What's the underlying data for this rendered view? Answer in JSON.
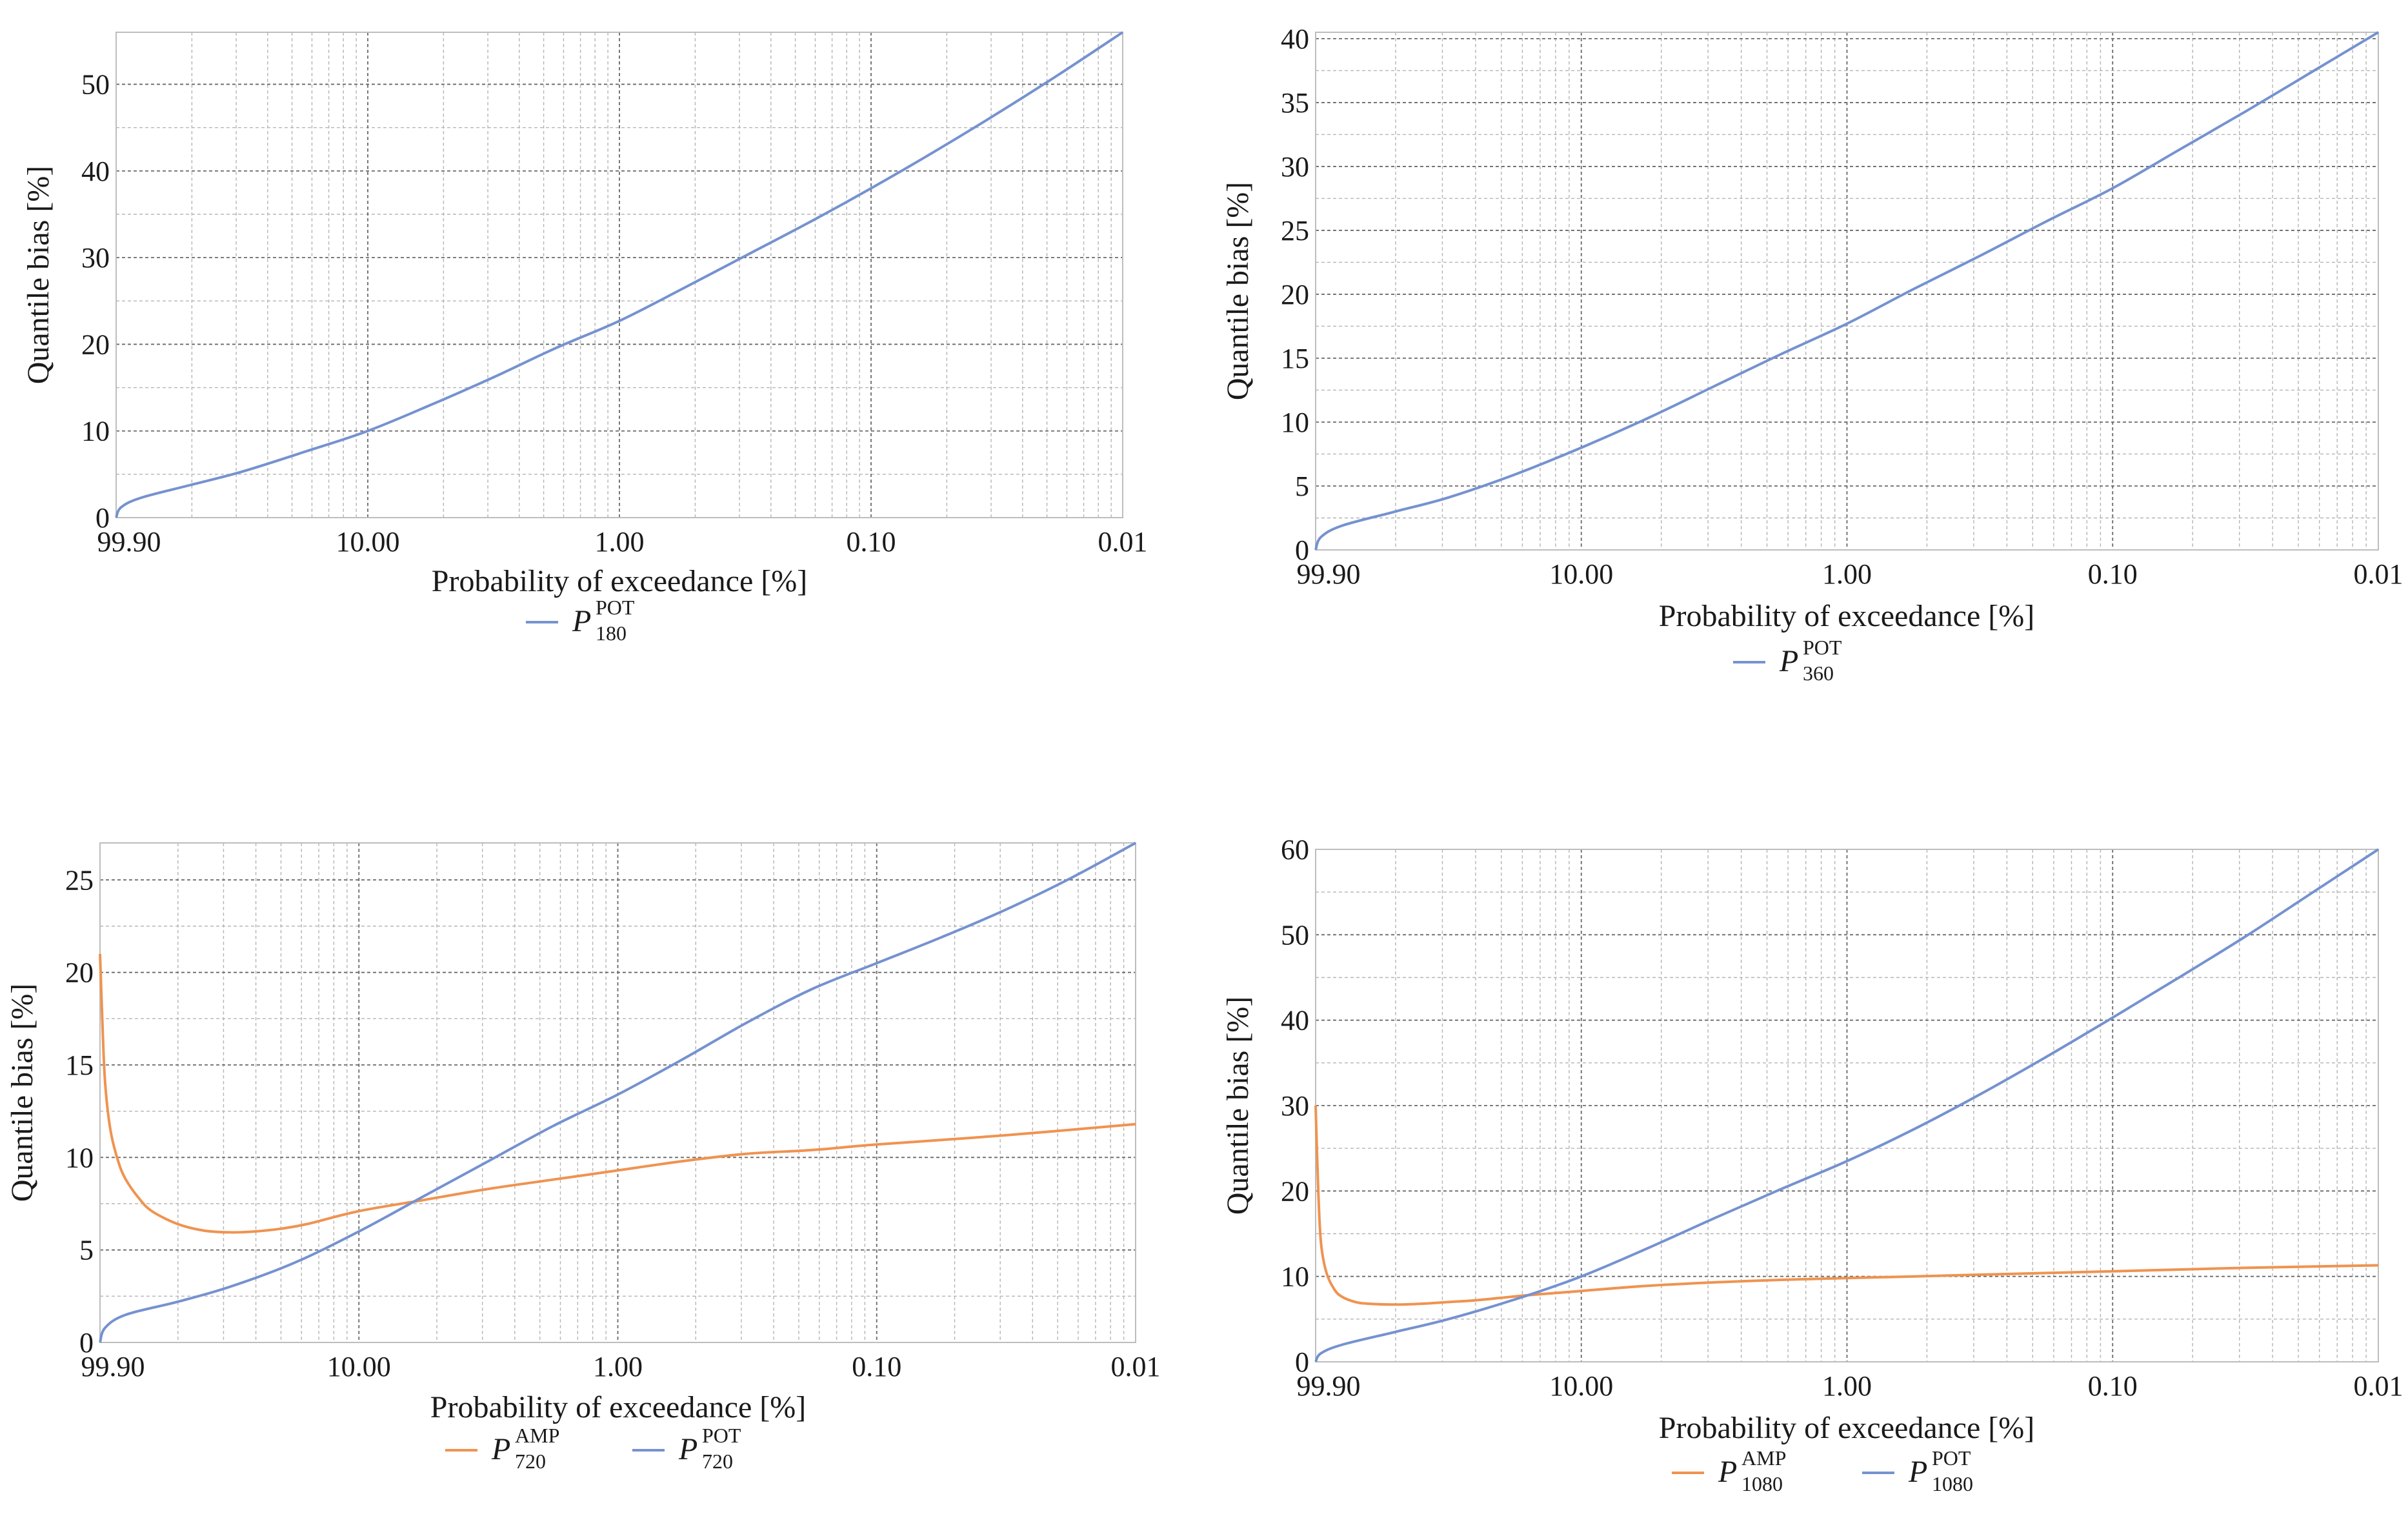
{
  "colors": {
    "pot": "#7592d0",
    "amp": "#ef9350"
  },
  "chart_data": [
    {
      "type": "line",
      "xlabel": "Probability of exceedance [%]",
      "ylabel": "Quantile bias [%]",
      "xticks": [
        "99.90",
        "10.00",
        "1.00",
        "0.10",
        "0.01"
      ],
      "yticks": [
        "0",
        "10",
        "20",
        "30",
        "40",
        "50"
      ],
      "ylim": [
        0,
        56
      ],
      "series": [
        {
          "name": "P_180^POT",
          "legend_base": "P",
          "legend_sup": "POT",
          "legend_sub": "180",
          "color": "#7592d0",
          "x_label_positions": [
            0,
            1,
            2,
            3,
            4
          ],
          "x": [
            0,
            0.02,
            0.1,
            0.3,
            0.5,
            0.75,
            1,
            1.25,
            1.5,
            1.75,
            2,
            2.25,
            2.5,
            2.75,
            3,
            3.25,
            3.5,
            3.75,
            4
          ],
          "y": [
            0,
            1.2,
            2.3,
            3.8,
            5.3,
            7.6,
            10,
            13,
            16.2,
            19.6,
            22.7,
            26.4,
            30.2,
            34,
            38,
            42.2,
            46.6,
            51.2,
            56
          ]
        }
      ]
    },
    {
      "type": "line",
      "xlabel": "Probability of exceedance [%]",
      "ylabel": "Quantile bias [%]",
      "xticks": [
        "99.90",
        "10.00",
        "1.00",
        "0.10",
        "0.01"
      ],
      "yticks": [
        "0",
        "5",
        "10",
        "15",
        "20",
        "25",
        "30",
        "35",
        "40"
      ],
      "ylim": [
        0,
        40.5
      ],
      "series": [
        {
          "name": "P_360^POT",
          "legend_base": "P",
          "legend_sup": "POT",
          "legend_sub": "360",
          "color": "#7592d0",
          "x": [
            0,
            0.02,
            0.1,
            0.3,
            0.5,
            0.75,
            1,
            1.25,
            1.5,
            1.75,
            2,
            2.25,
            2.5,
            2.75,
            3,
            3.25,
            3.5,
            3.75,
            4
          ],
          "y": [
            0,
            1,
            1.9,
            3,
            4.1,
            5.9,
            8,
            10.3,
            12.8,
            15.3,
            17.7,
            20.4,
            23,
            25.7,
            28.3,
            31.3,
            34.3,
            37.4,
            40.5
          ]
        }
      ]
    },
    {
      "type": "line",
      "xlabel": "Probability of exceedance [%]",
      "ylabel": "Quantile bias [%]",
      "xticks": [
        "99.90",
        "10.00",
        "1.00",
        "0.10",
        "0.01"
      ],
      "yticks": [
        "0",
        "5",
        "10",
        "15",
        "20",
        "25"
      ],
      "ylim": [
        0,
        27
      ],
      "series": [
        {
          "name": "P_720^AMP",
          "legend_base": "P",
          "legend_sup": "AMP",
          "legend_sub": "720",
          "color": "#ef9350",
          "x": [
            0,
            0.01,
            0.02,
            0.04,
            0.07,
            0.1,
            0.15,
            0.2,
            0.3,
            0.4,
            0.5,
            0.6,
            0.7,
            0.8,
            1,
            1.25,
            1.5,
            1.75,
            2,
            2.25,
            2.5,
            2.75,
            3,
            3.5,
            4
          ],
          "y": [
            21,
            17,
            14,
            11.5,
            9.8,
            8.8,
            7.8,
            7.1,
            6.4,
            6.05,
            5.95,
            6,
            6.15,
            6.4,
            7.1,
            7.7,
            8.3,
            8.8,
            9.3,
            9.8,
            10.2,
            10.4,
            10.7,
            11.2,
            11.8
          ]
        },
        {
          "name": "P_720^POT",
          "legend_base": "P",
          "legend_sup": "POT",
          "legend_sub": "720",
          "color": "#7592d0",
          "x": [
            0,
            0.02,
            0.1,
            0.3,
            0.5,
            0.75,
            1,
            1.25,
            1.5,
            1.75,
            2,
            2.25,
            2.5,
            2.75,
            3,
            3.25,
            3.5,
            3.75,
            4
          ],
          "y": [
            0,
            0.8,
            1.5,
            2.2,
            3,
            4.3,
            6,
            7.9,
            9.8,
            11.7,
            13.4,
            15.3,
            17.3,
            19.1,
            20.5,
            21.9,
            23.4,
            25.1,
            27
          ]
        }
      ]
    },
    {
      "type": "line",
      "xlabel": "Probability of exceedance [%]",
      "ylabel": "Quantile bias [%]",
      "xticks": [
        "99.90",
        "10.00",
        "1.00",
        "0.10",
        "0.01"
      ],
      "yticks": [
        "0",
        "10",
        "20",
        "30",
        "40",
        "50",
        "60"
      ],
      "ylim": [
        0,
        60
      ],
      "series": [
        {
          "name": "P_1080^AMP",
          "legend_base": "P",
          "legend_sup": "AMP",
          "legend_sub": "1080",
          "color": "#ef9350",
          "x": [
            0,
            0.01,
            0.02,
            0.04,
            0.07,
            0.1,
            0.15,
            0.2,
            0.3,
            0.4,
            0.5,
            0.6,
            0.7,
            0.8,
            1,
            1.25,
            1.5,
            1.75,
            2,
            2.25,
            2.5,
            2.75,
            3,
            3.5,
            4
          ],
          "y": [
            30,
            20,
            14,
            10.5,
            8.5,
            7.6,
            7,
            6.8,
            6.7,
            6.8,
            7,
            7.2,
            7.5,
            7.8,
            8.3,
            8.9,
            9.3,
            9.6,
            9.8,
            10,
            10.2,
            10.4,
            10.6,
            11,
            11.3
          ]
        },
        {
          "name": "P_1080^POT",
          "legend_base": "P",
          "legend_sup": "POT",
          "legend_sub": "1080",
          "color": "#7592d0",
          "x": [
            0,
            0.02,
            0.1,
            0.3,
            0.5,
            0.75,
            1,
            1.25,
            1.5,
            1.75,
            2,
            2.25,
            2.5,
            2.75,
            3,
            3.25,
            3.5,
            3.75,
            4
          ],
          "y": [
            0,
            1,
            2,
            3.5,
            5,
            7.3,
            10,
            13.3,
            16.8,
            20.2,
            23.5,
            27.2,
            31.3,
            35.7,
            40.3,
            45,
            49.8,
            54.9,
            60
          ]
        }
      ]
    }
  ]
}
